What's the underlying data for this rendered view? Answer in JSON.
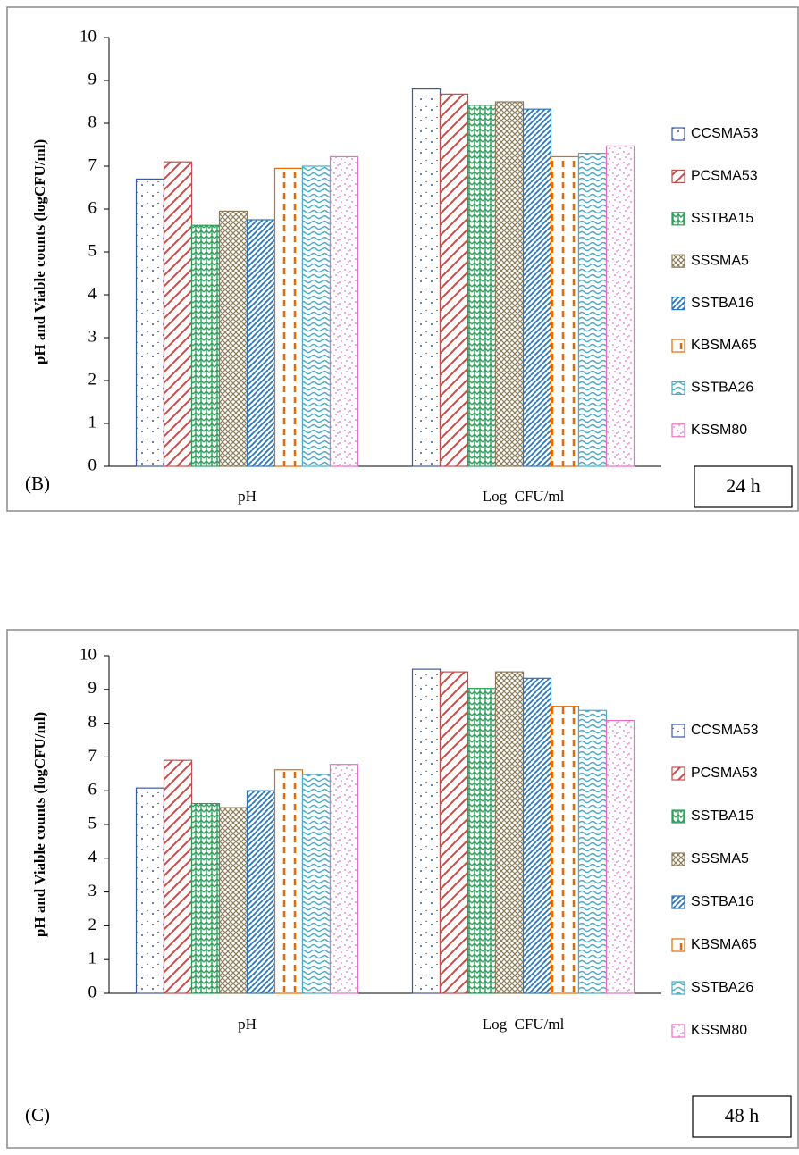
{
  "chart_data": [
    {
      "type": "bar",
      "ylabel": "pH and Viable counts (logCFU/ml)",
      "panel_label": "(B)",
      "annotation": "24 h",
      "categories": [
        "pH",
        "Log  CFU/ml"
      ],
      "ylim": [
        0,
        10
      ],
      "yticks": [
        0,
        1,
        2,
        3,
        4,
        5,
        6,
        7,
        8,
        9,
        10
      ],
      "legend": "right",
      "series": [
        {
          "name": "CCSMA53",
          "color": "#3b5ba5",
          "values": [
            6.7,
            8.8
          ]
        },
        {
          "name": "PCSMA53",
          "color": "#c0504d",
          "values": [
            7.1,
            8.68
          ]
        },
        {
          "name": "SSTBA15",
          "color": "#2ca05a",
          "values": [
            5.62,
            8.42
          ]
        },
        {
          "name": "SSSMA5",
          "color": "#8c7b5a",
          "values": [
            5.95,
            8.5
          ]
        },
        {
          "name": "SSTBA16",
          "color": "#2e75b6",
          "values": [
            5.75,
            8.33
          ]
        },
        {
          "name": "KBSMA65",
          "color": "#e36c09",
          "values": [
            6.95,
            7.22
          ]
        },
        {
          "name": "SSTBA26",
          "color": "#4bacc6",
          "values": [
            7.0,
            7.3
          ]
        },
        {
          "name": "KSSM80",
          "color": "#e86fc6",
          "values": [
            7.22,
            7.47
          ]
        }
      ]
    },
    {
      "type": "bar",
      "ylabel": "pH and Viable counts (logCFU/ml)",
      "panel_label": "(C)",
      "annotation": "48 h",
      "categories": [
        "pH",
        "Log  CFU/ml"
      ],
      "ylim": [
        0,
        10
      ],
      "yticks": [
        0,
        1,
        2,
        3,
        4,
        5,
        6,
        7,
        8,
        9,
        10
      ],
      "legend": "right",
      "series": [
        {
          "name": "CCSMA53",
          "color": "#3b5ba5",
          "values": [
            6.08,
            9.6
          ]
        },
        {
          "name": "PCSMA53",
          "color": "#c0504d",
          "values": [
            6.9,
            9.52
          ]
        },
        {
          "name": "SSTBA15",
          "color": "#2ca05a",
          "values": [
            5.62,
            9.03
          ]
        },
        {
          "name": "SSSMA5",
          "color": "#8c7b5a",
          "values": [
            5.5,
            9.52
          ]
        },
        {
          "name": "SSTBA16",
          "color": "#2e75b6",
          "values": [
            6.0,
            9.33
          ]
        },
        {
          "name": "KBSMA65",
          "color": "#e36c09",
          "values": [
            6.62,
            8.5
          ]
        },
        {
          "name": "SSTBA26",
          "color": "#4bacc6",
          "values": [
            6.48,
            8.38
          ]
        },
        {
          "name": "KSSM80",
          "color": "#e86fc6",
          "values": [
            6.78,
            8.08
          ]
        }
      ]
    }
  ]
}
